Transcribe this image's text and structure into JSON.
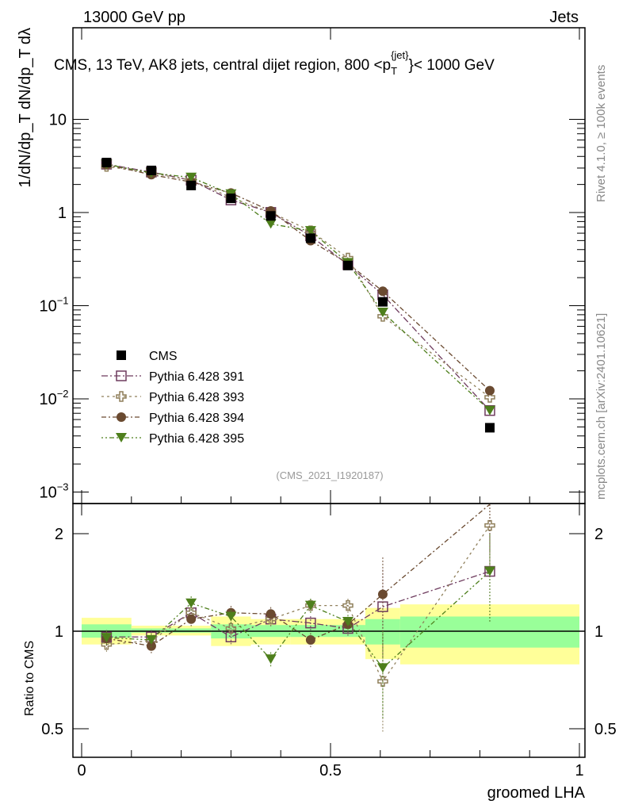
{
  "header": {
    "left": "13000 GeV pp",
    "right": "Jets"
  },
  "side": {
    "rivet": "Rivet 4.1.0, ≥ 100k events",
    "mcplots": "mcplots.cern.ch [arXiv:2401.10621]"
  },
  "chart_data": [
    {
      "type": "scatter",
      "title": "CMS, 13 TeV, AK8 jets, central dijet region, 800 <p_T^{jet}< 1000 GeV",
      "title_parts": {
        "main": "CMS, 13 TeV, AK8 jets, central dijet region, 800 <p",
        "sub": "T",
        "sup": "{jet}",
        "tail": "}< 1000 GeV"
      },
      "ylabel": "1/dN/dp_T dN/dp_T dλ",
      "yscale": "log",
      "ylim": [
        0.0008,
        60
      ],
      "yticks": [
        {
          "v": 0.001,
          "m": "10",
          "e": "−3"
        },
        {
          "v": 0.01,
          "m": "10",
          "e": "−2"
        },
        {
          "v": 0.1,
          "m": "10",
          "e": "−1"
        },
        {
          "v": 1,
          "m": "1",
          "e": ""
        },
        {
          "v": 10,
          "m": "10",
          "e": ""
        }
      ],
      "annotation": "(CMS_2021_I1920187)",
      "legend_position": "lower-left",
      "x": [
        0.05,
        0.14,
        0.22,
        0.3,
        0.38,
        0.46,
        0.535,
        0.605,
        0.82
      ],
      "cms": {
        "name": "CMS",
        "values": [
          3.44,
          2.83,
          1.95,
          1.42,
          0.92,
          0.53,
          0.27,
          0.11,
          0.0049
        ]
      },
      "series": [
        {
          "name": "Pythia 6.428 391",
          "color": "#6e3b5e",
          "marker": "open-square",
          "dash": "8,3,2,3",
          "ratio": [
            0.96,
            0.96,
            1.14,
            0.96,
            1.09,
            1.06,
            1.02,
            1.19,
            1.53
          ]
        },
        {
          "name": "Pythia 6.428 393",
          "color": "#8f7f5a",
          "marker": "open-cross",
          "dash": "3,4",
          "ratio": [
            0.91,
            0.935,
            1.14,
            1.02,
            1.09,
            1.2,
            1.2,
            0.7,
            2.12
          ]
        },
        {
          "name": "Pythia 6.428 394",
          "color": "#6a4a30",
          "marker": "circle",
          "dash": "6,3,2,3",
          "ratio": [
            0.95,
            0.9,
            1.09,
            1.14,
            1.13,
            0.94,
            1.05,
            1.3,
            2.5
          ]
        },
        {
          "name": "Pythia 6.428 395",
          "color": "#4e7f1c",
          "marker": "triangle-down",
          "dash": "2,3,2,3,6,3",
          "ratio": [
            0.955,
            0.94,
            1.22,
            1.11,
            0.82,
            1.2,
            1.07,
            0.77,
            1.53
          ]
        }
      ]
    },
    {
      "type": "line",
      "ylabel": "Ratio to CMS",
      "xlabel": "groomed LHA",
      "yscale": "log",
      "ylim": [
        0.42,
        2.35
      ],
      "yticks": [
        {
          "v": 0.5,
          "l": "0.5"
        },
        {
          "v": 1,
          "l": "1"
        },
        {
          "v": 2,
          "l": "2"
        }
      ],
      "xlim": [
        0,
        1
      ],
      "xticks": [
        {
          "v": 0,
          "l": "0"
        },
        {
          "v": 0.5,
          "l": "0.5"
        },
        {
          "v": 1,
          "l": "1"
        }
      ],
      "bin_edges": [
        0,
        0.1,
        0.18,
        0.26,
        0.34,
        0.42,
        0.5,
        0.57,
        0.64,
        1.0
      ],
      "band_total": [
        [
          0.91,
          1.1
        ],
        [
          0.97,
          1.04
        ],
        [
          0.97,
          1.04
        ],
        [
          0.9,
          1.11
        ],
        [
          0.91,
          1.09
        ],
        [
          0.91,
          1.09
        ],
        [
          0.91,
          1.09
        ],
        [
          0.82,
          1.18
        ],
        [
          0.79,
          1.21
        ]
      ],
      "band_stat": [
        [
          0.955,
          1.05
        ],
        [
          0.99,
          1.02
        ],
        [
          0.99,
          1.02
        ],
        [
          0.95,
          1.05
        ],
        [
          0.96,
          1.045
        ],
        [
          0.96,
          1.045
        ],
        [
          0.96,
          1.045
        ],
        [
          0.91,
          1.09
        ],
        [
          0.89,
          1.11
        ]
      ],
      "colors": {
        "total": "#ffff99",
        "stat": "#99ff99"
      }
    }
  ]
}
